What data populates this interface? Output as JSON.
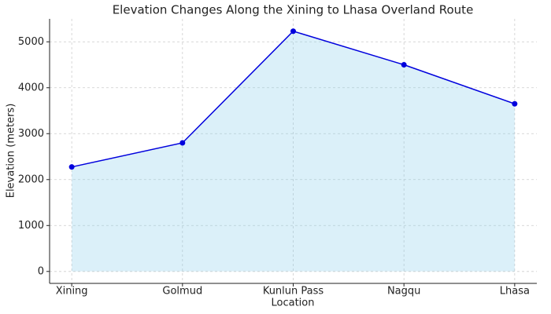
{
  "chart_data": {
    "type": "line",
    "title": "Elevation Changes Along the Xining to Lhasa Overland Route",
    "x_label": "Location",
    "y_label": "Elevation (meters)",
    "categories": [
      "Xining",
      "Golmud",
      "Kunlun Pass",
      "Nagqu",
      "Lhasa"
    ],
    "series": [
      {
        "name": "Elevation",
        "color": "#0000dd",
        "fill": "#87ceeb",
        "values": [
          2275,
          2800,
          5231,
          4500,
          3650
        ]
      }
    ],
    "ylim": [
      -260,
      5500
    ],
    "yticks": [
      0,
      1000,
      2000,
      3000,
      4000,
      5000
    ],
    "grid": true
  }
}
